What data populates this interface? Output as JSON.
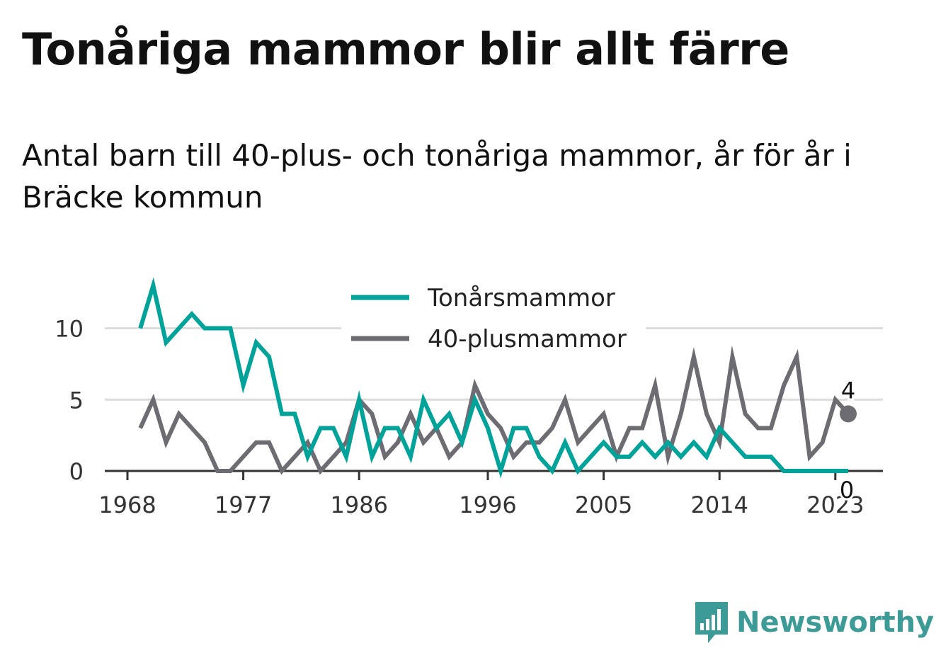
{
  "title": "Tonåriga mammor blir allt färre",
  "subtitle": "Antal barn till 40-plus- och tonåriga mammor, år för år i Bräcke kommun",
  "brand": {
    "name": "Newsworthy",
    "icon": "bar-chart-speech-bubble-icon"
  },
  "chart_data": {
    "type": "line",
    "title": "Tonåriga mammor blir allt färre",
    "subtitle": "Antal barn till 40-plus- och tonåriga mammor, år för år i Bräcke kommun",
    "xlabel": "",
    "ylabel": "",
    "xlim": [
      1968,
      2024
    ],
    "ylim": [
      0,
      13
    ],
    "x_ticks": [
      1968,
      1977,
      1986,
      1996,
      2005,
      2014,
      2023
    ],
    "y_ticks": [
      0,
      5,
      10
    ],
    "grid": "horizontal",
    "legend": "top-center",
    "x": [
      1969,
      1970,
      1971,
      1972,
      1973,
      1974,
      1975,
      1976,
      1977,
      1978,
      1979,
      1980,
      1981,
      1982,
      1983,
      1984,
      1985,
      1986,
      1987,
      1988,
      1989,
      1990,
      1991,
      1992,
      1993,
      1994,
      1995,
      1996,
      1997,
      1998,
      1999,
      2000,
      2001,
      2002,
      2003,
      2004,
      2005,
      2006,
      2007,
      2008,
      2009,
      2010,
      2011,
      2012,
      2013,
      2014,
      2015,
      2016,
      2017,
      2018,
      2019,
      2020,
      2021,
      2022,
      2023,
      2024
    ],
    "series": [
      {
        "name": "Tonårsmammor",
        "color": "#00a39a",
        "values": [
          10,
          13,
          9,
          10,
          11,
          10,
          10,
          10,
          6,
          9,
          8,
          4,
          4,
          1,
          3,
          3,
          1,
          5,
          1,
          3,
          3,
          1,
          5,
          3,
          4,
          2,
          5,
          3,
          0,
          3,
          3,
          1,
          0,
          2,
          0,
          1,
          2,
          1,
          1,
          2,
          1,
          2,
          1,
          2,
          1,
          3,
          2,
          1,
          1,
          1,
          0,
          0,
          0,
          0,
          0,
          0
        ],
        "end_label": "0"
      },
      {
        "name": "40-plusmammor",
        "color": "#6d6c72",
        "values": [
          3,
          5,
          2,
          4,
          3,
          2,
          0,
          0,
          1,
          2,
          2,
          0,
          1,
          2,
          0,
          1,
          2,
          5,
          4,
          1,
          2,
          4,
          2,
          3,
          1,
          2,
          6,
          4,
          3,
          1,
          2,
          2,
          3,
          5,
          2,
          3,
          4,
          1,
          3,
          3,
          6,
          1,
          4,
          8,
          4,
          2,
          8,
          4,
          3,
          3,
          6,
          8,
          1,
          2,
          5,
          4
        ],
        "end_label": "4"
      }
    ]
  }
}
